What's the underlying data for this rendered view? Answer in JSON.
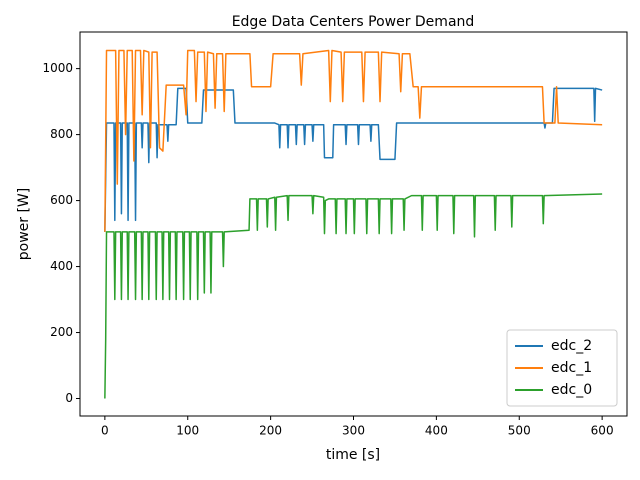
{
  "chart_data": {
    "type": "line",
    "title": "Edge Data Centers Power Demand",
    "x_label": "time [s]",
    "y_label": "power [W]",
    "xlim": [
      -30,
      630
    ],
    "ylim": [
      -53,
      1111
    ],
    "xticks": [
      0,
      100,
      200,
      300,
      400,
      500,
      600
    ],
    "yticks": [
      0,
      200,
      400,
      600,
      800,
      1000
    ],
    "grid": false,
    "legend": "lower right",
    "series": [
      {
        "name": "edc_2",
        "color": "#1f77b4",
        "x": [
          0,
          2,
          11,
          12,
          13,
          19,
          20,
          21,
          27,
          28,
          29,
          36,
          37,
          38,
          44,
          45,
          46,
          52,
          53,
          54,
          62,
          63,
          64,
          75,
          76,
          77,
          86,
          88,
          98,
          100,
          117,
          119,
          155,
          157,
          205,
          210,
          211,
          212,
          220,
          221,
          222,
          230,
          231,
          232,
          240,
          241,
          242,
          250,
          251,
          252,
          264,
          265,
          275,
          276,
          290,
          291,
          292,
          305,
          306,
          307,
          320,
          321,
          322,
          330,
          332,
          350,
          352,
          400,
          450,
          530,
          531,
          532,
          540,
          542,
          590,
          591,
          592,
          600
        ],
        "values": [
          505,
          835,
          835,
          540,
          835,
          835,
          560,
          835,
          835,
          540,
          835,
          835,
          540,
          835,
          835,
          760,
          835,
          835,
          715,
          835,
          835,
          730,
          830,
          830,
          780,
          830,
          830,
          940,
          940,
          835,
          835,
          935,
          935,
          835,
          835,
          830,
          760,
          830,
          830,
          760,
          830,
          830,
          770,
          830,
          830,
          770,
          830,
          830,
          780,
          830,
          830,
          730,
          730,
          830,
          830,
          770,
          830,
          830,
          770,
          830,
          830,
          780,
          830,
          830,
          725,
          725,
          835,
          835,
          835,
          835,
          820,
          835,
          835,
          940,
          940,
          840,
          940,
          935
        ]
      },
      {
        "name": "edc_1",
        "color": "#ff7f0e",
        "x": [
          0,
          2,
          13,
          15,
          17,
          23,
          25,
          27,
          33,
          35,
          37,
          43,
          45,
          47,
          53,
          55,
          57,
          63,
          66,
          70,
          74,
          85,
          95,
          98,
          100,
          108,
          110,
          112,
          120,
          122,
          124,
          131,
          133,
          135,
          142,
          144,
          146,
          175,
          177,
          200,
          203,
          235,
          237,
          239,
          270,
          272,
          274,
          285,
          287,
          289,
          310,
          312,
          314,
          330,
          332,
          334,
          355,
          357,
          359,
          368,
          372,
          378,
          380,
          382,
          420,
          470,
          528,
          530,
          543,
          545,
          547,
          600
        ],
        "values": [
          505,
          1055,
          1055,
          650,
          1055,
          1055,
          800,
          1055,
          1055,
          720,
          1055,
          1055,
          860,
          1055,
          1050,
          760,
          1050,
          1050,
          760,
          750,
          950,
          950,
          950,
          860,
          1055,
          1055,
          900,
          1050,
          1050,
          870,
          1050,
          1045,
          880,
          1045,
          1045,
          870,
          1045,
          1045,
          945,
          945,
          1045,
          1045,
          950,
          1045,
          1055,
          900,
          1055,
          1050,
          900,
          1050,
          1050,
          900,
          1050,
          1050,
          900,
          1050,
          1045,
          930,
          1045,
          1045,
          945,
          945,
          850,
          945,
          945,
          945,
          945,
          835,
          835,
          945,
          835,
          830
        ]
      },
      {
        "name": "edc_0",
        "color": "#2ca02c",
        "x": [
          0,
          1,
          2,
          11,
          12,
          13,
          19,
          20,
          21,
          27,
          28,
          29,
          36,
          37,
          38,
          44,
          45,
          46,
          52,
          53,
          54,
          61,
          62,
          63,
          69,
          70,
          71,
          77,
          78,
          79,
          85,
          86,
          87,
          94,
          95,
          96,
          102,
          103,
          104,
          111,
          112,
          113,
          119,
          120,
          121,
          127,
          128,
          129,
          142,
          143,
          144,
          174,
          175,
          183,
          184,
          185,
          195,
          196,
          197,
          205,
          206,
          207,
          220,
          221,
          222,
          250,
          251,
          252,
          264,
          265,
          266,
          270,
          278,
          279,
          280,
          290,
          291,
          292,
          300,
          301,
          302,
          315,
          316,
          317,
          330,
          331,
          332,
          345,
          346,
          347,
          360,
          361,
          362,
          370,
          382,
          383,
          384,
          400,
          401,
          402,
          420,
          421,
          422,
          445,
          446,
          447,
          470,
          471,
          472,
          490,
          491,
          492,
          528,
          529,
          530,
          600
        ],
        "values": [
          0,
          180,
          505,
          505,
          300,
          505,
          505,
          300,
          505,
          505,
          300,
          505,
          505,
          300,
          505,
          505,
          300,
          505,
          505,
          300,
          505,
          505,
          300,
          505,
          505,
          300,
          505,
          505,
          300,
          505,
          505,
          300,
          505,
          505,
          300,
          505,
          505,
          300,
          505,
          505,
          300,
          505,
          505,
          320,
          505,
          505,
          320,
          505,
          505,
          400,
          505,
          510,
          605,
          605,
          510,
          605,
          605,
          520,
          605,
          610,
          510,
          610,
          615,
          540,
          615,
          615,
          560,
          615,
          610,
          500,
          600,
          605,
          605,
          500,
          605,
          605,
          500,
          605,
          605,
          500,
          605,
          605,
          500,
          605,
          605,
          500,
          605,
          605,
          500,
          605,
          605,
          510,
          605,
          615,
          615,
          510,
          615,
          615,
          510,
          615,
          615,
          500,
          615,
          615,
          490,
          615,
          615,
          510,
          615,
          615,
          520,
          615,
          615,
          530,
          615,
          620
        ]
      }
    ]
  }
}
